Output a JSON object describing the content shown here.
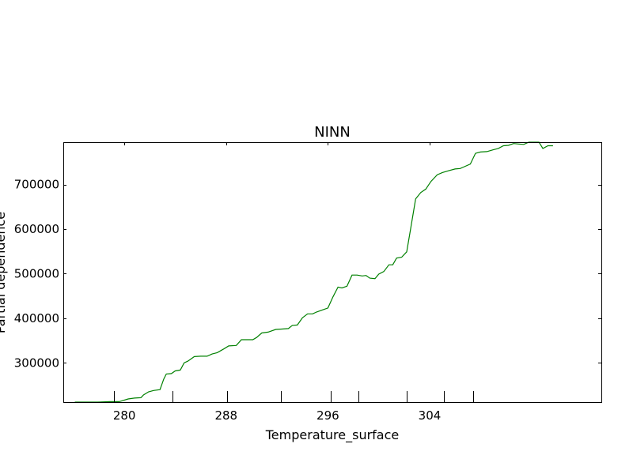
{
  "chart_data": {
    "type": "line",
    "title": "NINN",
    "xlabel": "Temperature_surface",
    "ylabel": "Partial dependence",
    "xlim": [
      275.2,
      317.5
    ],
    "ylim": [
      212000,
      795000
    ],
    "x_ticks": [
      280,
      288,
      296,
      304
    ],
    "y_ticks": [
      300000,
      400000,
      500000,
      600000,
      700000
    ],
    "y_tick_labels": [
      "300000",
      "400000",
      "500000",
      "600000",
      "700000"
    ],
    "x_tick_labels": [
      "280",
      "288",
      "296",
      "304"
    ],
    "rug_x": [
      279.2,
      283.8,
      288.1,
      292.3,
      296.2,
      298.4,
      302.2,
      305.1,
      307.4
    ],
    "grid": false,
    "series": [
      {
        "color": "#008000",
        "points": [
          [
            276.1,
            212000
          ],
          [
            277.1,
            212000
          ],
          [
            277.9,
            212000
          ],
          [
            278.9,
            213000
          ],
          [
            279.6,
            213000
          ],
          [
            280.3,
            219000
          ],
          [
            280.8,
            221000
          ],
          [
            281.3,
            222000
          ],
          [
            281.5,
            228000
          ],
          [
            281.9,
            235000
          ],
          [
            282.3,
            238000
          ],
          [
            282.8,
            240000
          ],
          [
            283.1,
            264000
          ],
          [
            283.3,
            275000
          ],
          [
            283.7,
            276000
          ],
          [
            284.0,
            282000
          ],
          [
            284.4,
            284000
          ],
          [
            284.7,
            300000
          ],
          [
            285.0,
            304000
          ],
          [
            285.5,
            314000
          ],
          [
            286.0,
            315000
          ],
          [
            286.5,
            315000
          ],
          [
            286.9,
            320000
          ],
          [
            287.3,
            323000
          ],
          [
            287.8,
            331000
          ],
          [
            288.2,
            338000
          ],
          [
            288.8,
            339000
          ],
          [
            289.2,
            352000
          ],
          [
            289.6,
            352000
          ],
          [
            290.1,
            352000
          ],
          [
            290.4,
            357000
          ],
          [
            290.8,
            367000
          ],
          [
            291.3,
            369000
          ],
          [
            291.9,
            375000
          ],
          [
            292.4,
            376000
          ],
          [
            292.9,
            377000
          ],
          [
            293.2,
            384000
          ],
          [
            293.6,
            385000
          ],
          [
            294.0,
            401000
          ],
          [
            294.4,
            410000
          ],
          [
            294.8,
            410000
          ],
          [
            295.1,
            414000
          ],
          [
            295.6,
            419000
          ],
          [
            296.0,
            423000
          ],
          [
            296.4,
            448000
          ],
          [
            296.8,
            470000
          ],
          [
            297.1,
            468000
          ],
          [
            297.5,
            472000
          ],
          [
            297.9,
            497000
          ],
          [
            298.3,
            497000
          ],
          [
            298.7,
            495000
          ],
          [
            299.0,
            496000
          ],
          [
            299.3,
            490000
          ],
          [
            299.7,
            489000
          ],
          [
            300.0,
            499000
          ],
          [
            300.4,
            505000
          ],
          [
            300.8,
            520000
          ],
          [
            301.1,
            520000
          ],
          [
            301.4,
            535000
          ],
          [
            301.8,
            537000
          ],
          [
            302.2,
            549000
          ],
          [
            302.5,
            600000
          ],
          [
            302.9,
            668000
          ],
          [
            303.3,
            682000
          ],
          [
            303.7,
            690000
          ],
          [
            304.1,
            707000
          ],
          [
            304.6,
            722000
          ],
          [
            305.0,
            727000
          ],
          [
            305.5,
            731000
          ],
          [
            306.0,
            735000
          ],
          [
            306.4,
            736000
          ],
          [
            306.8,
            741000
          ],
          [
            307.2,
            746000
          ],
          [
            307.6,
            770000
          ],
          [
            308.0,
            773000
          ],
          [
            308.5,
            774000
          ],
          [
            309.0,
            778000
          ],
          [
            309.4,
            781000
          ],
          [
            309.8,
            787000
          ],
          [
            310.2,
            788000
          ],
          [
            310.6,
            792000
          ],
          [
            311.0,
            791000
          ],
          [
            311.4,
            790000
          ],
          [
            311.8,
            795000
          ],
          [
            312.2,
            795000
          ],
          [
            312.6,
            795000
          ],
          [
            312.9,
            781000
          ],
          [
            313.3,
            787000
          ],
          [
            313.7,
            787000
          ]
        ]
      }
    ]
  }
}
